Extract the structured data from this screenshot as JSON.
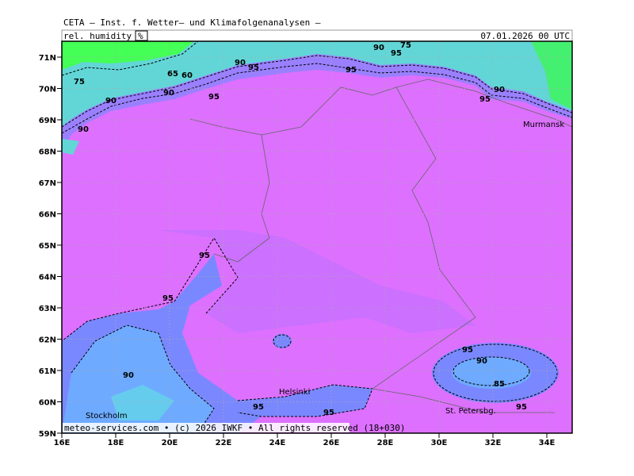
{
  "header": {
    "title": "CETA — Inst. f. Wetter— und Klimafolgenanalysen —",
    "parameter": "rel. humidity",
    "unit": "%",
    "valid_time": "07.01.2026 00 UTC"
  },
  "map": {
    "lat_labels": [
      "71N",
      "70N",
      "69N",
      "68N",
      "67N",
      "66N",
      "65N",
      "64N",
      "63N",
      "62N",
      "61N",
      "60N",
      "59N"
    ],
    "lon_labels": [
      "16E",
      "18E",
      "20E",
      "22E",
      "24E",
      "26E",
      "28E",
      "30E",
      "32E",
      "34E"
    ],
    "cities": [
      "Murmansk",
      "Helsinki",
      "Stockholm",
      "St. Petersbg."
    ],
    "contour_labels": [
      75,
      65,
      60,
      90,
      95,
      90,
      75,
      95,
      95,
      95,
      90,
      90,
      90,
      95,
      90,
      95,
      95,
      90,
      95,
      90,
      85,
      95,
      95,
      95
    ],
    "footer": "meteo-services.com • (c) 2026 IWKF • All rights reserved (18+030)"
  }
}
